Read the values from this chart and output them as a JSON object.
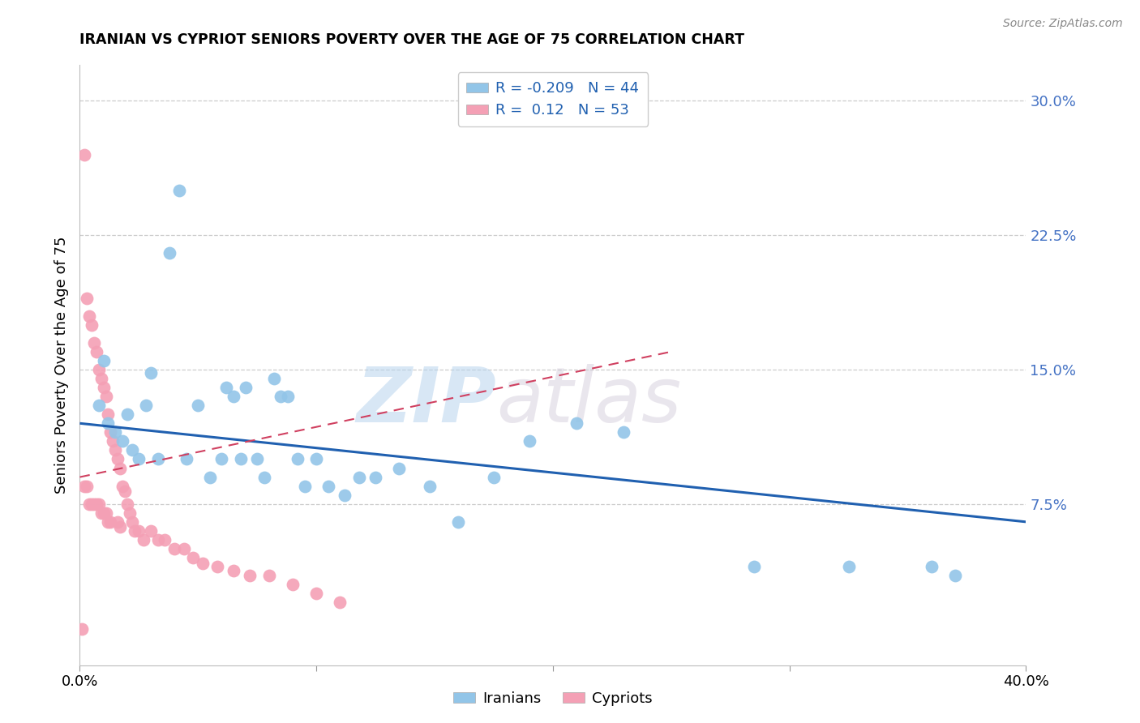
{
  "title": "IRANIAN VS CYPRIOT SENIORS POVERTY OVER THE AGE OF 75 CORRELATION CHART",
  "source": "Source: ZipAtlas.com",
  "ylabel": "Seniors Poverty Over the Age of 75",
  "xlim": [
    0.0,
    0.4
  ],
  "ylim": [
    -0.015,
    0.32
  ],
  "iranian_R": -0.209,
  "iranian_N": 44,
  "cypriot_R": 0.12,
  "cypriot_N": 53,
  "iranian_color": "#92C5E8",
  "cypriot_color": "#F4A0B5",
  "iranian_line_color": "#2060B0",
  "cypriot_line_color": "#D04060",
  "watermark_zip": "ZIP",
  "watermark_atlas": "atlas",
  "iranians_x": [
    0.008,
    0.01,
    0.012,
    0.015,
    0.018,
    0.02,
    0.022,
    0.025,
    0.028,
    0.03,
    0.033,
    0.038,
    0.042,
    0.045,
    0.05,
    0.055,
    0.06,
    0.062,
    0.065,
    0.068,
    0.07,
    0.075,
    0.078,
    0.082,
    0.085,
    0.088,
    0.092,
    0.095,
    0.1,
    0.105,
    0.112,
    0.118,
    0.125,
    0.135,
    0.148,
    0.16,
    0.175,
    0.19,
    0.21,
    0.23,
    0.285,
    0.325,
    0.36,
    0.37
  ],
  "iranians_y": [
    0.13,
    0.155,
    0.12,
    0.115,
    0.11,
    0.125,
    0.105,
    0.1,
    0.13,
    0.148,
    0.1,
    0.215,
    0.25,
    0.1,
    0.13,
    0.09,
    0.1,
    0.14,
    0.135,
    0.1,
    0.14,
    0.1,
    0.09,
    0.145,
    0.135,
    0.135,
    0.1,
    0.085,
    0.1,
    0.085,
    0.08,
    0.09,
    0.09,
    0.095,
    0.085,
    0.065,
    0.09,
    0.11,
    0.12,
    0.115,
    0.04,
    0.04,
    0.04,
    0.035
  ],
  "cypriots_x": [
    0.001,
    0.002,
    0.002,
    0.003,
    0.003,
    0.004,
    0.004,
    0.005,
    0.005,
    0.006,
    0.006,
    0.007,
    0.007,
    0.008,
    0.008,
    0.009,
    0.009,
    0.01,
    0.01,
    0.011,
    0.011,
    0.012,
    0.012,
    0.013,
    0.013,
    0.014,
    0.015,
    0.016,
    0.016,
    0.017,
    0.017,
    0.018,
    0.019,
    0.02,
    0.021,
    0.022,
    0.023,
    0.025,
    0.027,
    0.03,
    0.033,
    0.036,
    0.04,
    0.044,
    0.048,
    0.052,
    0.058,
    0.065,
    0.072,
    0.08,
    0.09,
    0.1,
    0.11
  ],
  "cypriots_y": [
    0.005,
    0.27,
    0.085,
    0.19,
    0.085,
    0.18,
    0.075,
    0.175,
    0.075,
    0.165,
    0.075,
    0.16,
    0.075,
    0.15,
    0.075,
    0.145,
    0.07,
    0.14,
    0.07,
    0.135,
    0.07,
    0.125,
    0.065,
    0.115,
    0.065,
    0.11,
    0.105,
    0.1,
    0.065,
    0.095,
    0.062,
    0.085,
    0.082,
    0.075,
    0.07,
    0.065,
    0.06,
    0.06,
    0.055,
    0.06,
    0.055,
    0.055,
    0.05,
    0.05,
    0.045,
    0.042,
    0.04,
    0.038,
    0.035,
    0.035,
    0.03,
    0.025,
    0.02
  ],
  "iranian_line_x": [
    0.0,
    0.4
  ],
  "iranian_line_y": [
    0.12,
    0.065
  ],
  "cypriot_line_x": [
    0.0,
    0.25
  ],
  "cypriot_line_y": [
    0.09,
    0.16
  ]
}
